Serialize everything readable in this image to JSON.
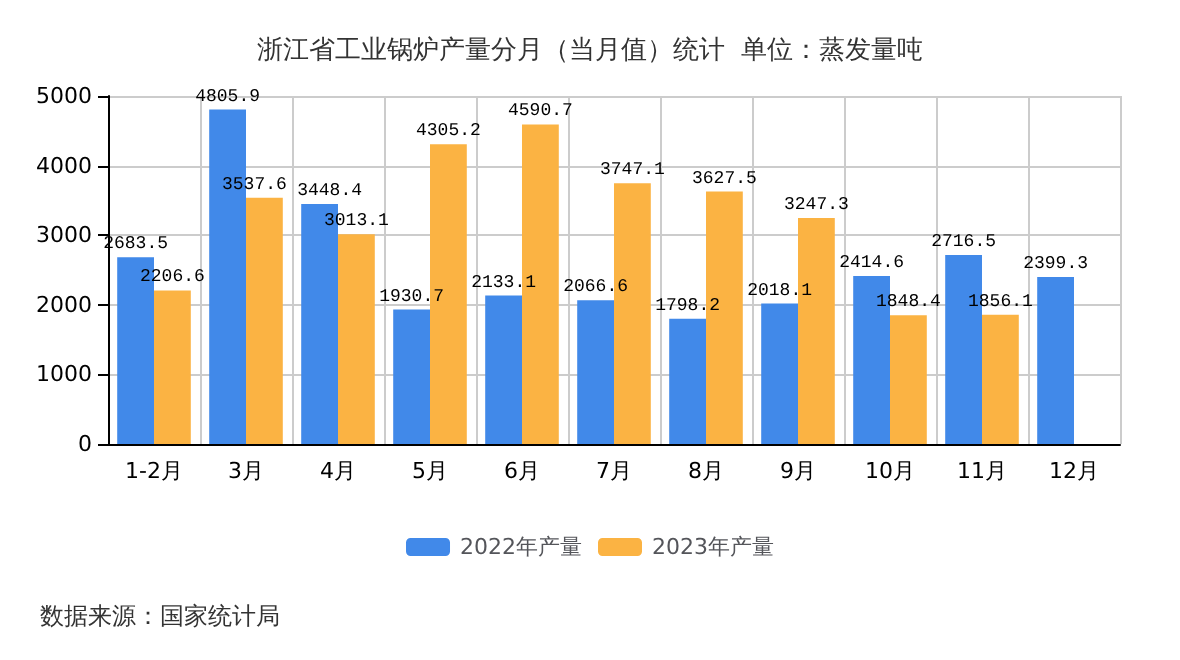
{
  "chart_data": {
    "type": "bar",
    "title": "浙江省工业锅炉产量分月（当月值）统计  单位：蒸发量吨",
    "categories": [
      "1-2月",
      "3月",
      "4月",
      "5月",
      "6月",
      "7月",
      "8月",
      "9月",
      "10月",
      "11月",
      "12月"
    ],
    "series": [
      {
        "name": "2022年产量",
        "color": "#4189e9",
        "values": [
          2683.5,
          4805.9,
          3448.4,
          1930.7,
          2133.1,
          2066.6,
          1798.2,
          2018.1,
          2414.6,
          2716.5,
          2399.3
        ]
      },
      {
        "name": "2023年产量",
        "color": "#fbb343",
        "values": [
          2206.6,
          3537.6,
          3013.1,
          4305.2,
          4590.7,
          3747.1,
          3627.5,
          3247.3,
          1848.4,
          1856.1,
          null
        ]
      }
    ],
    "ylim": [
      0,
      5000
    ],
    "yticks": [
      0,
      1000,
      2000,
      3000,
      4000,
      5000
    ],
    "grid": true,
    "legend": "bottom",
    "data_labels": true,
    "annotations": [
      "数据来源：国家统计局"
    ]
  }
}
